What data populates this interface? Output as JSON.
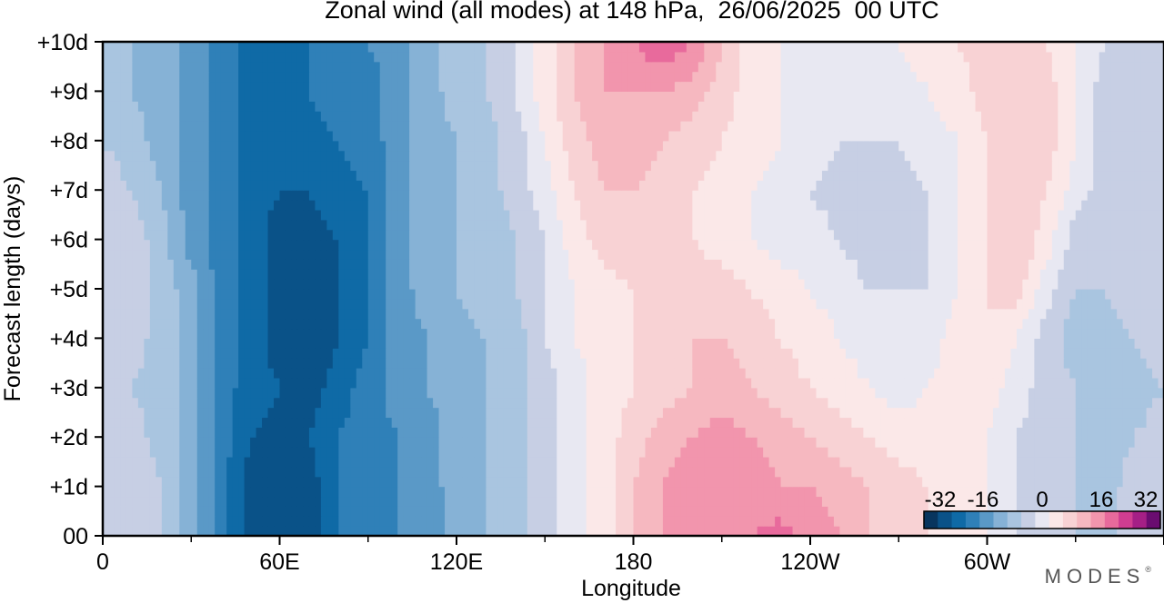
{
  "title": "Zonal wind (all modes) at 148 hPa,  26/06/2025  00 UTC",
  "watermark": "MODES",
  "watermark_mark": "®",
  "chart_data": {
    "type": "heatmap",
    "title": "Zonal wind (all modes) at 148 hPa,  26/06/2025  00 UTC",
    "xlabel": "Longitude",
    "ylabel": "Forecast length (days)",
    "x_ticks": [
      "0",
      "60E",
      "120E",
      "180",
      "120W",
      "60W"
    ],
    "y_ticks": [
      "00",
      "+1d",
      "+2d",
      "+3d",
      "+4d",
      "+5d",
      "+6d",
      "+7d",
      "+8d",
      "+9d",
      "+10d"
    ],
    "x_range_deg_east": [
      0,
      360
    ],
    "y_range_days": [
      0,
      10
    ],
    "grid": false,
    "legend": {
      "placement": "bottom-right",
      "tick_labels": [
        "-32",
        "-16",
        "0",
        "16",
        "32"
      ],
      "range": [
        -32,
        32
      ],
      "levels": [
        -32,
        -28,
        -24,
        -20,
        -16,
        -12,
        -8,
        -4,
        0,
        4,
        8,
        12,
        16,
        20,
        24,
        28,
        32
      ],
      "colors": [
        "#08355e",
        "#0a5288",
        "#0f6aa6",
        "#2f80b8",
        "#5a99c7",
        "#86b2d6",
        "#a9c5e0",
        "#c7cfe4",
        "#e8e8f2",
        "#fbe8e8",
        "#f8d2d4",
        "#f6b8c0",
        "#f295ad",
        "#e86a9c",
        "#d03d91",
        "#a51f86",
        "#6a0c70"
      ]
    },
    "longitudes_deg_east": [
      0,
      10,
      20,
      30,
      40,
      50,
      60,
      70,
      80,
      90,
      100,
      110,
      120,
      130,
      140,
      150,
      160,
      170,
      180,
      190,
      200,
      210,
      220,
      230,
      240,
      250,
      260,
      270,
      280,
      290,
      300,
      310,
      320,
      330,
      340,
      350,
      360
    ],
    "forecast_days": [
      0,
      1,
      2,
      3,
      4,
      5,
      6,
      7,
      8,
      9,
      10
    ],
    "z_values": [
      [
        -2,
        -2,
        -6,
        -12,
        -20,
        -28,
        -30,
        -28,
        -22,
        -20,
        -18,
        -16,
        -13,
        -10,
        -8,
        -4,
        0,
        4,
        10,
        14,
        16,
        18,
        18,
        20,
        16,
        14,
        10,
        8,
        6,
        4,
        2,
        -2,
        -4,
        -6,
        -8,
        -4,
        -2
      ],
      [
        -3,
        -3,
        -6,
        -12,
        -20,
        -28,
        -30,
        -28,
        -22,
        -20,
        -18,
        -16,
        -12,
        -10,
        -8,
        -4,
        0,
        4,
        10,
        14,
        16,
        18,
        16,
        14,
        14,
        12,
        10,
        8,
        6,
        4,
        2,
        -2,
        -4,
        -6,
        -8,
        -4,
        -3
      ],
      [
        -4,
        -4,
        -8,
        -12,
        -20,
        -26,
        -28,
        -26,
        -22,
        -20,
        -18,
        -16,
        -12,
        -10,
        -8,
        -4,
        0,
        4,
        8,
        12,
        14,
        16,
        14,
        12,
        10,
        8,
        6,
        4,
        4,
        4,
        2,
        -2,
        -4,
        -6,
        -8,
        -6,
        -4
      ],
      [
        -6,
        -6,
        -8,
        -12,
        -20,
        -24,
        -26,
        -28,
        -24,
        -20,
        -16,
        -14,
        -12,
        -10,
        -8,
        -4,
        0,
        4,
        6,
        8,
        10,
        12,
        10,
        8,
        6,
        4,
        2,
        0,
        2,
        4,
        4,
        0,
        -4,
        -6,
        -8,
        -8,
        -6
      ],
      [
        -4,
        -4,
        -8,
        -12,
        -20,
        -24,
        -28,
        -30,
        -26,
        -22,
        -16,
        -14,
        -12,
        -10,
        -8,
        -2,
        2,
        4,
        6,
        8,
        10,
        10,
        8,
        6,
        4,
        2,
        0,
        -2,
        0,
        4,
        6,
        2,
        -4,
        -8,
        -8,
        -6,
        -4
      ],
      [
        -4,
        -4,
        -8,
        -12,
        -20,
        -24,
        -28,
        -30,
        -26,
        -22,
        -16,
        -12,
        -10,
        -8,
        -6,
        -2,
        2,
        4,
        6,
        8,
        8,
        8,
        6,
        4,
        2,
        0,
        -2,
        -2,
        -2,
        2,
        6,
        8,
        0,
        -6,
        -6,
        -4,
        -4
      ],
      [
        -2,
        -4,
        -8,
        -16,
        -20,
        -24,
        -28,
        -28,
        -26,
        -22,
        -16,
        -12,
        -10,
        -10,
        -6,
        -2,
        4,
        8,
        10,
        8,
        6,
        4,
        2,
        0,
        0,
        -2,
        -4,
        -4,
        -2,
        2,
        6,
        10,
        4,
        -4,
        -6,
        -6,
        -2
      ],
      [
        -4,
        -6,
        -10,
        -16,
        -20,
        -24,
        -26,
        -26,
        -24,
        -22,
        -16,
        -12,
        -10,
        -8,
        -4,
        0,
        6,
        10,
        10,
        8,
        6,
        4,
        2,
        0,
        -2,
        -4,
        -4,
        -4,
        -2,
        2,
        6,
        10,
        6,
        0,
        -4,
        -6,
        -4
      ],
      [
        -6,
        -8,
        -12,
        -16,
        -20,
        -24,
        -26,
        -24,
        -22,
        -20,
        -16,
        -12,
        -10,
        -8,
        -4,
        2,
        8,
        12,
        12,
        10,
        8,
        6,
        4,
        2,
        0,
        -2,
        -2,
        -2,
        0,
        2,
        6,
        10,
        8,
        2,
        -4,
        -6,
        -6
      ],
      [
        -6,
        -10,
        -12,
        -16,
        -20,
        -24,
        -26,
        -22,
        -20,
        -20,
        -16,
        -12,
        -8,
        -6,
        -2,
        4,
        10,
        14,
        14,
        14,
        12,
        8,
        4,
        2,
        0,
        -2,
        -2,
        0,
        2,
        4,
        8,
        10,
        8,
        2,
        -4,
        -6,
        -6
      ],
      [
        -6,
        -10,
        -12,
        -16,
        -20,
        -24,
        -26,
        -22,
        -20,
        -18,
        -16,
        -12,
        -8,
        -6,
        -2,
        4,
        10,
        14,
        18,
        22,
        18,
        10,
        4,
        2,
        2,
        0,
        0,
        2,
        4,
        6,
        8,
        8,
        6,
        2,
        -2,
        -6,
        -6
      ]
    ]
  }
}
